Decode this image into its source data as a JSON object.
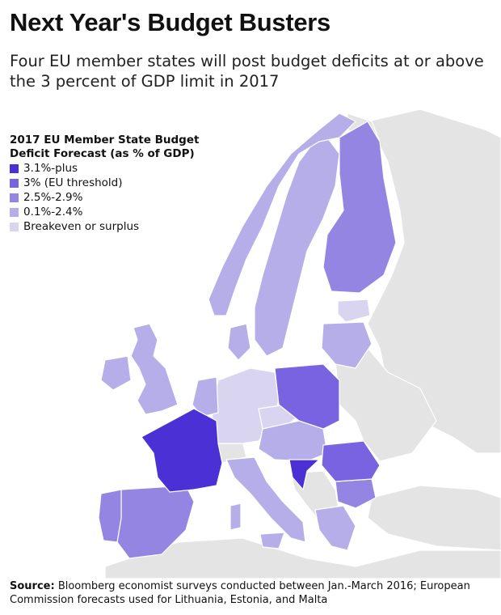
{
  "title": "Next Year's Budget Busters",
  "subtitle": "Four EU member states will post budget deficits at or above the 3 percent of GDP limit in 2017",
  "legend": {
    "title_line1": "2017 EU Member State Budget",
    "title_line2": "Deficit Forecast (as % of GDP)",
    "items": [
      {
        "label": "3.1%-plus",
        "color": "#4b30d6"
      },
      {
        "label": "3% (EU threshold)",
        "color": "#7a63e0"
      },
      {
        "label": "2.5%-2.9%",
        "color": "#9585e3"
      },
      {
        "label": "0.1%-2.4%",
        "color": "#b6aee8"
      },
      {
        "label": "Breakeven or surplus",
        "color": "#d9d5f1"
      }
    ]
  },
  "colors": {
    "non_eu_land": "#e4e4e4",
    "border": "#ffffff"
  },
  "source": {
    "label": "Source:",
    "text": "Bloomberg economist surveys conducted between Jan.-March 2016; European Commission forecasts used for Lithuania, Estonia, and Malta"
  }
}
